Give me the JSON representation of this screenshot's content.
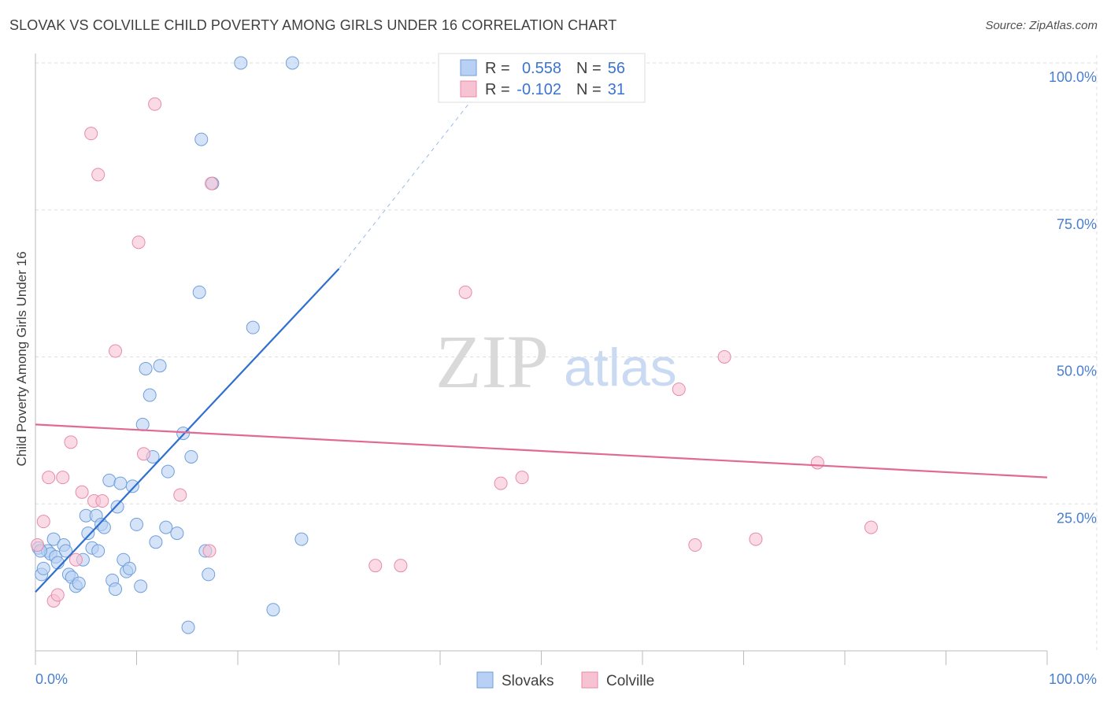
{
  "title": "SLOVAK VS COLVILLE CHILD POVERTY AMONG GIRLS UNDER 16 CORRELATION CHART",
  "source": "Source: ZipAtlas.com",
  "watermark": {
    "zip": "ZIP",
    "atlas": "atlas"
  },
  "colors": {
    "slovaks_fill": "#b7d0f3",
    "slovaks_stroke": "#6f9fdb",
    "slovaks_line": "#2f6fd0",
    "colville_fill": "#f7c3d3",
    "colville_stroke": "#e98aa9",
    "colville_line": "#e06a91",
    "tick": "#4a7fcf",
    "grid": "#dddddd"
  },
  "legend": {
    "r_label": "R =",
    "n_label": "N =",
    "rows": [
      {
        "r": "0.558",
        "n": "56"
      },
      {
        "r": "-0.102",
        "n": "31"
      }
    ]
  },
  "bottom_legend": [
    "Slovaks",
    "Colville"
  ],
  "chart_data": {
    "type": "scatter",
    "title": "SLOVAK VS COLVILLE CHILD POVERTY AMONG GIRLS UNDER 16 CORRELATION CHART",
    "xlabel": "",
    "ylabel": "Child Poverty Among Girls Under 16",
    "xlim": [
      0,
      100
    ],
    "ylim": [
      0,
      100
    ],
    "x_tick_labels": [
      "0.0%",
      "100.0%"
    ],
    "y_tick_labels": [
      "25.0%",
      "50.0%",
      "75.0%",
      "100.0%"
    ],
    "grid": "horizontal dashed",
    "legend_position": "top-center",
    "series": [
      {
        "name": "Slovaks",
        "r": 0.558,
        "n": 56,
        "points": [
          [
            0.3,
            17.5
          ],
          [
            0.6,
            13
          ],
          [
            0.8,
            14
          ],
          [
            1.2,
            17
          ],
          [
            1.5,
            16.5
          ],
          [
            1.8,
            19
          ],
          [
            2,
            16
          ],
          [
            2.2,
            15
          ],
          [
            2.8,
            18
          ],
          [
            3,
            17
          ],
          [
            3.3,
            13
          ],
          [
            3.6,
            12.5
          ],
          [
            4,
            11
          ],
          [
            4.3,
            11.5
          ],
          [
            4.7,
            15.5
          ],
          [
            5,
            23
          ],
          [
            5.2,
            20
          ],
          [
            5.6,
            17.5
          ],
          [
            6,
            23
          ],
          [
            6.2,
            17
          ],
          [
            6.5,
            21.5
          ],
          [
            6.8,
            21
          ],
          [
            7.3,
            29
          ],
          [
            7.6,
            12
          ],
          [
            7.9,
            10.5
          ],
          [
            8.1,
            24.5
          ],
          [
            8.4,
            28.5
          ],
          [
            8.7,
            15.5
          ],
          [
            9,
            13.5
          ],
          [
            9.3,
            14
          ],
          [
            9.6,
            28
          ],
          [
            10,
            21.5
          ],
          [
            10.4,
            11
          ],
          [
            10.6,
            38.5
          ],
          [
            10.9,
            48
          ],
          [
            11.3,
            43.5
          ],
          [
            11.6,
            33
          ],
          [
            11.9,
            18.5
          ],
          [
            12.3,
            48.5
          ],
          [
            12.9,
            21
          ],
          [
            13.1,
            30.5
          ],
          [
            14,
            20
          ],
          [
            14.6,
            37
          ],
          [
            15.1,
            4
          ],
          [
            15.4,
            33
          ],
          [
            16.2,
            61
          ],
          [
            16.4,
            87
          ],
          [
            16.8,
            17
          ],
          [
            17.1,
            13
          ],
          [
            17.5,
            79.5
          ],
          [
            20.3,
            100
          ],
          [
            21.5,
            55
          ],
          [
            23.5,
            7
          ],
          [
            25.4,
            100
          ],
          [
            26.3,
            19
          ],
          [
            0.5,
            17
          ]
        ]
      },
      {
        "name": "Colville",
        "r": -0.102,
        "n": 31,
        "points": [
          [
            0.2,
            18
          ],
          [
            0.8,
            22
          ],
          [
            1.3,
            29.5
          ],
          [
            1.8,
            8.5
          ],
          [
            2.2,
            9.5
          ],
          [
            2.7,
            29.5
          ],
          [
            3.5,
            35.5
          ],
          [
            4,
            15.5
          ],
          [
            4.6,
            27
          ],
          [
            5.5,
            88
          ],
          [
            5.8,
            25.5
          ],
          [
            6.2,
            81
          ],
          [
            6.6,
            25.5
          ],
          [
            7.9,
            51
          ],
          [
            10.2,
            69.5
          ],
          [
            10.7,
            33.5
          ],
          [
            11.8,
            93
          ],
          [
            14.3,
            26.5
          ],
          [
            17.2,
            17
          ],
          [
            17.4,
            79.5
          ],
          [
            33.6,
            14.5
          ],
          [
            36.1,
            14.5
          ],
          [
            42.5,
            61
          ],
          [
            46,
            28.5
          ],
          [
            48.1,
            29.5
          ],
          [
            63.6,
            44.5
          ],
          [
            65.2,
            18
          ],
          [
            68.1,
            50
          ],
          [
            71.2,
            19
          ],
          [
            77.3,
            32
          ],
          [
            82.6,
            21
          ]
        ]
      }
    ],
    "trendlines": [
      {
        "series": "Slovaks",
        "x": [
          0,
          30
        ],
        "y": [
          10,
          65
        ],
        "dashed_to": [
          46,
          100
        ]
      },
      {
        "series": "Colville",
        "x": [
          0,
          100
        ],
        "y": [
          38.5,
          29.5
        ]
      }
    ]
  }
}
